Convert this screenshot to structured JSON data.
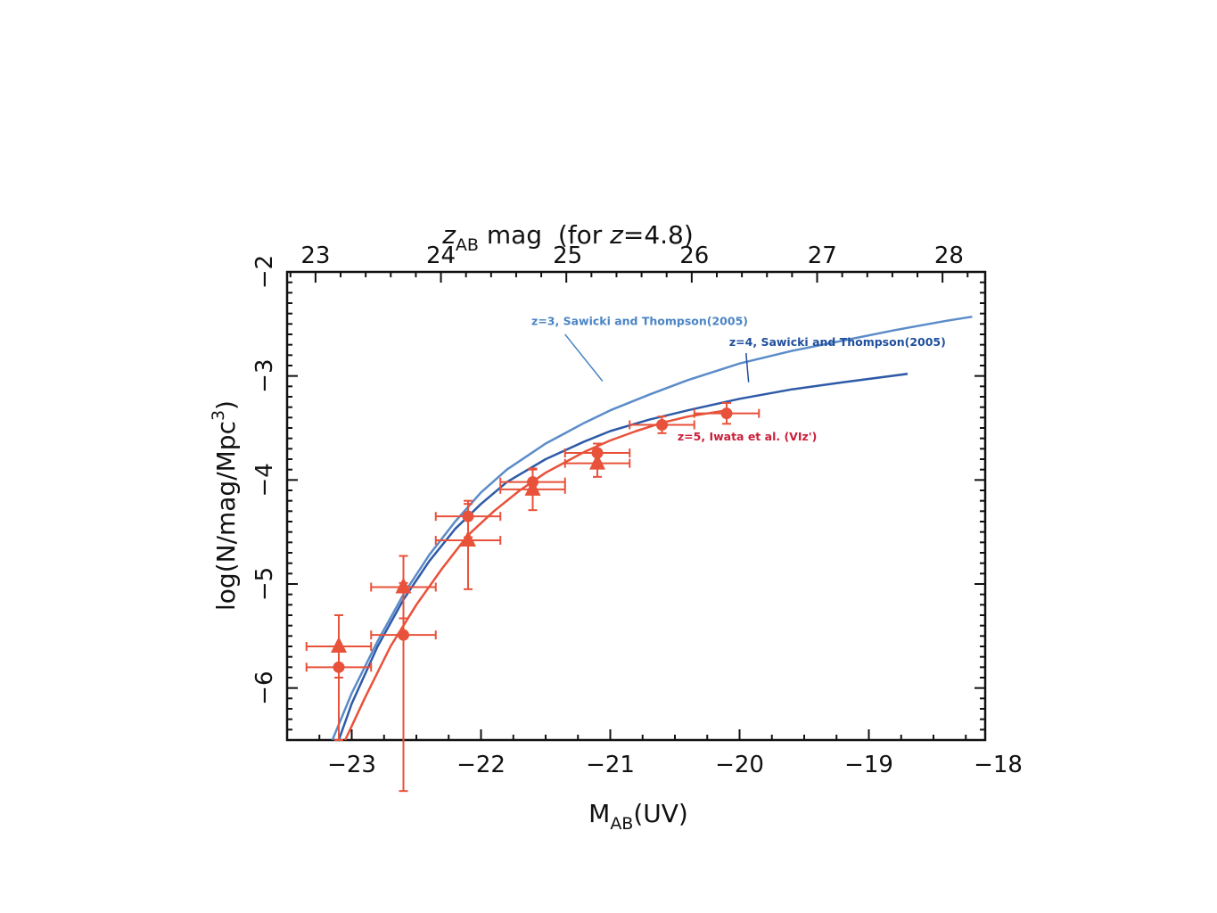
{
  "chart_data": {
    "type": "scatter",
    "xlabel": {
      "main": "M",
      "sub": "AB",
      "suffix": "(UV)"
    },
    "ylabel": {
      "main": "log(N/mag/Mpc",
      "sup": "3",
      "suffix": ")"
    },
    "top_axis_label": {
      "main": "z",
      "sub": "AB",
      "suffix": " mag  (for ",
      "italic": "z",
      "tail": "=4.8)"
    },
    "xlim": [
      -23.5,
      -18.1
    ],
    "ylim": [
      -6.5,
      -2
    ],
    "x_ticks": [
      -23,
      -22,
      -21,
      -20,
      -19,
      -18
    ],
    "x_tick_labels": [
      "−23",
      "−22",
      "−21",
      "−20",
      "−19",
      "−18"
    ],
    "y_ticks": [
      -6,
      -5,
      -4,
      -3,
      -2
    ],
    "y_tick_labels": [
      "−6",
      "−5",
      "−4",
      "−3",
      "−2"
    ],
    "top_ticks": [
      {
        "M": -23.28,
        "label": "23"
      },
      {
        "M": -22.31,
        "label": "24"
      },
      {
        "M": -21.33,
        "label": "25"
      },
      {
        "M": -20.35,
        "label": "26"
      },
      {
        "M": -19.36,
        "label": "27"
      },
      {
        "M": -18.38,
        "label": "28"
      }
    ],
    "grid": false,
    "curves": [
      {
        "name": "z=3, Sawicki and Thompson(2005)",
        "color": "#5b8cc8",
        "x": [
          -23.15,
          -23.0,
          -22.8,
          -22.6,
          -22.4,
          -22.2,
          -22.0,
          -21.8,
          -21.5,
          -21.2,
          -21.0,
          -20.7,
          -20.4,
          -20.0,
          -19.6,
          -19.2,
          -18.8,
          -18.4,
          -18.2
        ],
        "y": [
          -6.5,
          -6.05,
          -5.55,
          -5.1,
          -4.72,
          -4.4,
          -4.12,
          -3.9,
          -3.65,
          -3.45,
          -3.33,
          -3.18,
          -3.04,
          -2.88,
          -2.76,
          -2.66,
          -2.56,
          -2.47,
          -2.43
        ]
      },
      {
        "name": "z=4, Sawicki and Thompson(2005)",
        "color": "#2e5aa8",
        "x": [
          -23.1,
          -23.0,
          -22.8,
          -22.6,
          -22.4,
          -22.2,
          -22.0,
          -21.8,
          -21.5,
          -21.2,
          -21.0,
          -20.7,
          -20.4,
          -20.0,
          -19.6,
          -19.2,
          -18.7
        ],
        "y": [
          -6.5,
          -6.15,
          -5.6,
          -5.15,
          -4.78,
          -4.47,
          -4.23,
          -4.02,
          -3.8,
          -3.63,
          -3.53,
          -3.42,
          -3.33,
          -3.22,
          -3.13,
          -3.06,
          -2.98
        ]
      },
      {
        "name": "z=5, Iwata et al. (VIz')",
        "color": "#e8513a",
        "x": [
          -23.05,
          -22.9,
          -22.7,
          -22.5,
          -22.3,
          -22.1,
          -21.9,
          -21.7,
          -21.5,
          -21.2,
          -21.0,
          -20.8,
          -20.6,
          -20.4,
          -20.1
        ],
        "y": [
          -6.5,
          -6.1,
          -5.6,
          -5.2,
          -4.85,
          -4.53,
          -4.3,
          -4.1,
          -3.93,
          -3.73,
          -3.62,
          -3.53,
          -3.45,
          -3.39,
          -3.33
        ]
      }
    ],
    "series": [
      {
        "name": "circles",
        "marker": "circle",
        "color": "#e8513a",
        "points": [
          {
            "x": -23.1,
            "y": -5.8,
            "xerr": 0.25,
            "yerr_lo": 0.7,
            "yerr_hi": 0.5
          },
          {
            "x": -22.6,
            "y": -5.49,
            "xerr": 0.25,
            "yerr_lo": 1.5,
            "yerr_hi": 0.5
          },
          {
            "x": -22.1,
            "y": -4.35,
            "xerr": 0.25,
            "yerr_lo": 0.2,
            "yerr_hi": 0.15
          },
          {
            "x": -21.6,
            "y": -4.02,
            "xerr": 0.25,
            "yerr_lo": 0.12,
            "yerr_hi": 0.12
          },
          {
            "x": -21.1,
            "y": -3.74,
            "xerr": 0.25,
            "yerr_lo": 0.09,
            "yerr_hi": 0.09
          },
          {
            "x": -20.6,
            "y": -3.47,
            "xerr": 0.25,
            "yerr_lo": 0.08,
            "yerr_hi": 0.08
          },
          {
            "x": -20.1,
            "y": -3.36,
            "xerr": 0.25,
            "yerr_lo": 0.1,
            "yerr_hi": 0.1
          }
        ]
      },
      {
        "name": "triangles",
        "marker": "triangle",
        "color": "#e8513a",
        "points": [
          {
            "x": -23.1,
            "y": -5.6,
            "xerr": 0.25,
            "yerr_lo": 0.3,
            "yerr_hi": 0.3
          },
          {
            "x": -22.6,
            "y": -5.03,
            "xerr": 0.25,
            "yerr_lo": 0.3,
            "yerr_hi": 0.3
          },
          {
            "x": -22.1,
            "y": -4.58,
            "xerr": 0.25,
            "yerr_lo": 0.47,
            "yerr_hi": 0.35
          },
          {
            "x": -21.6,
            "y": -4.09,
            "xerr": 0.25,
            "yerr_lo": 0.2,
            "yerr_hi": 0.2
          },
          {
            "x": -21.1,
            "y": -3.84,
            "xerr": 0.25,
            "yerr_lo": 0.13,
            "yerr_hi": 0.13
          }
        ]
      }
    ],
    "annotations": [
      {
        "text": "z=3, Sawicki and Thompson(2005)",
        "color": "#4a84c4",
        "at_x": -21.61,
        "at_y": -2.51
      },
      {
        "text": "z=4, Sawicki and Thompson(2005)",
        "color": "#1f4f9e",
        "at_x": -20.08,
        "at_y": -2.71
      },
      {
        "text": "z=5, Iwata et al. (VIz')",
        "color": "#cc1e3a",
        "at_x": -20.48,
        "at_y": -3.62
      }
    ]
  }
}
